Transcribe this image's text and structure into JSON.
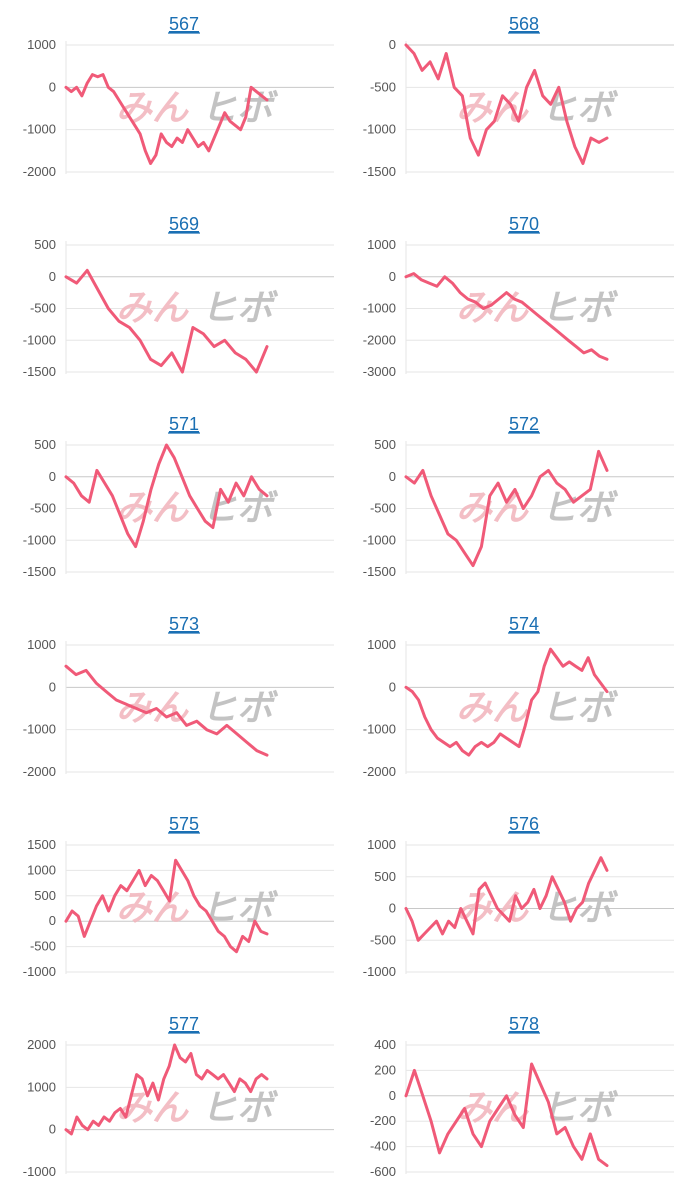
{
  "colors": {
    "line": "#f05a78",
    "grid": "#e6e6e6",
    "zero": "#c8c8c8",
    "title": "#1a6fb3",
    "tick": "#555555"
  },
  "watermark": {
    "pink": "みん",
    "gray": "ヒボ"
  },
  "chart_data": [
    {
      "type": "line",
      "title": "567",
      "ylim": [
        -2000,
        1000
      ],
      "yticks": [
        1000,
        0,
        -1000,
        -2000
      ],
      "values": [
        0,
        -100,
        0,
        -200,
        100,
        300,
        250,
        300,
        0,
        -100,
        -300,
        -500,
        -700,
        -900,
        -1100,
        -1500,
        -1800,
        -1600,
        -1100,
        -1300,
        -1400,
        -1200,
        -1300,
        -1000,
        -1200,
        -1400,
        -1300,
        -1500,
        -1200,
        -900,
        -600,
        -800,
        -900,
        -1000,
        -700,
        0,
        -100,
        -200,
        -300
      ]
    },
    {
      "type": "line",
      "title": "568",
      "ylim": [
        -1500,
        0
      ],
      "yticks": [
        0,
        -500,
        -1000,
        -1500
      ],
      "values": [
        0,
        -100,
        -300,
        -200,
        -400,
        -100,
        -500,
        -600,
        -1100,
        -1300,
        -1000,
        -900,
        -600,
        -700,
        -900,
        -500,
        -300,
        -600,
        -700,
        -500,
        -900,
        -1200,
        -1400,
        -1100,
        -1150,
        -1100
      ]
    },
    {
      "type": "line",
      "title": "569",
      "ylim": [
        -1500,
        500
      ],
      "yticks": [
        500,
        0,
        -500,
        -1000,
        -1500
      ],
      "values": [
        0,
        -100,
        100,
        -200,
        -500,
        -700,
        -800,
        -1000,
        -1300,
        -1400,
        -1200,
        -1500,
        -800,
        -900,
        -1100,
        -1000,
        -1200,
        -1300,
        -1500,
        -1100
      ]
    },
    {
      "type": "line",
      "title": "570",
      "ylim": [
        -3000,
        1000
      ],
      "yticks": [
        1000,
        0,
        -1000,
        -2000,
        -3000
      ],
      "values": [
        0,
        100,
        -100,
        -200,
        -300,
        0,
        -200,
        -500,
        -700,
        -800,
        -1000,
        -900,
        -700,
        -500,
        -700,
        -800,
        -1000,
        -1200,
        -1400,
        -1600,
        -1800,
        -2000,
        -2200,
        -2400,
        -2300,
        -2500,
        -2600
      ]
    },
    {
      "type": "line",
      "title": "571",
      "ylim": [
        -1500,
        500
      ],
      "yticks": [
        500,
        0,
        -500,
        -1000,
        -1500
      ],
      "values": [
        0,
        -100,
        -300,
        -400,
        100,
        -100,
        -300,
        -600,
        -900,
        -1100,
        -700,
        -200,
        200,
        500,
        300,
        0,
        -300,
        -500,
        -700,
        -800,
        -200,
        -400,
        -100,
        -300,
        0,
        -200,
        -300
      ]
    },
    {
      "type": "line",
      "title": "572",
      "ylim": [
        -1500,
        500
      ],
      "yticks": [
        500,
        0,
        -500,
        -1000,
        -1500
      ],
      "values": [
        0,
        -100,
        100,
        -300,
        -600,
        -900,
        -1000,
        -1200,
        -1400,
        -1100,
        -300,
        -100,
        -400,
        -200,
        -500,
        -300,
        0,
        100,
        -100,
        -200,
        -400,
        -300,
        -200,
        400,
        100
      ]
    },
    {
      "type": "line",
      "title": "573",
      "ylim": [
        -2000,
        1000
      ],
      "yticks": [
        1000,
        0,
        -1000,
        -2000
      ],
      "values": [
        500,
        300,
        400,
        100,
        -100,
        -300,
        -400,
        -500,
        -600,
        -500,
        -700,
        -600,
        -900,
        -800,
        -1000,
        -1100,
        -900,
        -1100,
        -1300,
        -1500,
        -1600
      ]
    },
    {
      "type": "line",
      "title": "574",
      "ylim": [
        -2000,
        1000
      ],
      "yticks": [
        1000,
        0,
        -1000,
        -2000
      ],
      "values": [
        0,
        -100,
        -300,
        -700,
        -1000,
        -1200,
        -1300,
        -1400,
        -1300,
        -1500,
        -1600,
        -1400,
        -1300,
        -1400,
        -1300,
        -1100,
        -1200,
        -1300,
        -1400,
        -900,
        -300,
        -100,
        500,
        900,
        700,
        500,
        600,
        500,
        400,
        700,
        300,
        100,
        -100
      ]
    },
    {
      "type": "line",
      "title": "575",
      "ylim": [
        -1000,
        1500
      ],
      "yticks": [
        1500,
        1000,
        500,
        0,
        -500,
        -1000
      ],
      "values": [
        0,
        200,
        100,
        -300,
        0,
        300,
        500,
        200,
        500,
        700,
        600,
        800,
        1000,
        700,
        900,
        800,
        600,
        400,
        1200,
        1000,
        800,
        500,
        300,
        200,
        0,
        -200,
        -300,
        -500,
        -600,
        -300,
        -400,
        0,
        -200,
        -250
      ]
    },
    {
      "type": "line",
      "title": "576",
      "ylim": [
        -1000,
        1000
      ],
      "yticks": [
        1000,
        500,
        0,
        -500,
        -1000
      ],
      "values": [
        0,
        -200,
        -500,
        -400,
        -300,
        -200,
        -400,
        -200,
        -300,
        0,
        -200,
        -400,
        300,
        400,
        200,
        0,
        -100,
        -200,
        200,
        0,
        100,
        300,
        0,
        200,
        500,
        300,
        100,
        -200,
        0,
        100,
        400,
        600,
        800,
        600
      ]
    },
    {
      "type": "line",
      "title": "577",
      "ylim": [
        -1000,
        2000
      ],
      "yticks": [
        2000,
        1000,
        0,
        -1000
      ],
      "values": [
        0,
        -100,
        300,
        100,
        0,
        200,
        100,
        300,
        200,
        400,
        500,
        300,
        800,
        1300,
        1200,
        800,
        1100,
        700,
        1200,
        1500,
        2000,
        1700,
        1600,
        1800,
        1300,
        1200,
        1400,
        1300,
        1200,
        1300,
        1100,
        900,
        1200,
        1100,
        900,
        1200,
        1300,
        1200
      ]
    },
    {
      "type": "line",
      "title": "578",
      "ylim": [
        -600,
        400
      ],
      "yticks": [
        400,
        200,
        0,
        -200,
        -400,
        -600
      ],
      "values": [
        0,
        200,
        0,
        -200,
        -450,
        -300,
        -200,
        -100,
        -300,
        -400,
        -200,
        -100,
        0,
        -150,
        -250,
        250,
        100,
        -50,
        -300,
        -250,
        -400,
        -500,
        -300,
        -500,
        -550
      ]
    }
  ]
}
